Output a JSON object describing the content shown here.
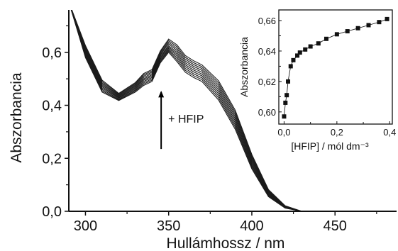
{
  "chart_data": [
    {
      "type": "line",
      "xlabel": "Hullámhossz / nm",
      "ylabel": "Abszorbancia",
      "xlim": [
        290,
        487
      ],
      "ylim": [
        0,
        0.76
      ],
      "xticks": [
        300,
        350,
        400,
        450
      ],
      "xtick_labels": [
        "300",
        "350",
        "400",
        "450"
      ],
      "yticks": [
        0,
        0.2,
        0.4,
        0.6
      ],
      "ytick_labels": [
        "0,0",
        "0,2",
        "0,4",
        "0,6"
      ],
      "annotation": "+ HFIP",
      "grid": false,
      "series": [
        {
          "x": [
            290,
            300,
            310,
            320,
            330,
            335,
            340,
            345,
            350,
            355,
            360,
            365,
            370,
            380,
            390,
            400,
            410,
            420,
            430,
            487
          ],
          "y": [
            0.79,
            0.58,
            0.45,
            0.418,
            0.45,
            0.475,
            0.49,
            0.56,
            0.6,
            0.565,
            0.525,
            0.505,
            0.49,
            0.42,
            0.31,
            0.16,
            0.055,
            0.012,
            0.0,
            0.0
          ]
        },
        {
          "x": [
            290,
            300,
            310,
            320,
            330,
            335,
            340,
            345,
            350,
            355,
            360,
            365,
            370,
            380,
            390,
            400,
            410,
            420,
            430,
            487
          ],
          "y": [
            0.79,
            0.585,
            0.455,
            0.421,
            0.454,
            0.48,
            0.495,
            0.565,
            0.605,
            0.572,
            0.532,
            0.512,
            0.497,
            0.428,
            0.318,
            0.166,
            0.058,
            0.013,
            0.0,
            0.0
          ]
        },
        {
          "x": [
            290,
            300,
            310,
            320,
            330,
            335,
            340,
            345,
            350,
            355,
            360,
            365,
            370,
            380,
            390,
            400,
            410,
            420,
            430,
            487
          ],
          "y": [
            0.79,
            0.59,
            0.46,
            0.424,
            0.458,
            0.485,
            0.5,
            0.57,
            0.61,
            0.579,
            0.539,
            0.519,
            0.504,
            0.436,
            0.326,
            0.172,
            0.061,
            0.014,
            0.0,
            0.0
          ]
        },
        {
          "x": [
            290,
            300,
            310,
            320,
            330,
            335,
            340,
            345,
            350,
            355,
            360,
            365,
            370,
            380,
            390,
            400,
            410,
            420,
            430,
            487
          ],
          "y": [
            0.79,
            0.595,
            0.465,
            0.427,
            0.462,
            0.49,
            0.505,
            0.575,
            0.615,
            0.586,
            0.546,
            0.526,
            0.511,
            0.444,
            0.334,
            0.178,
            0.064,
            0.015,
            0.0,
            0.0
          ]
        },
        {
          "x": [
            290,
            300,
            310,
            320,
            330,
            335,
            340,
            345,
            350,
            355,
            360,
            365,
            370,
            380,
            390,
            400,
            410,
            420,
            430,
            487
          ],
          "y": [
            0.79,
            0.6,
            0.47,
            0.43,
            0.466,
            0.495,
            0.51,
            0.58,
            0.62,
            0.593,
            0.553,
            0.533,
            0.518,
            0.452,
            0.342,
            0.184,
            0.067,
            0.016,
            0.0,
            0.0
          ]
        },
        {
          "x": [
            290,
            300,
            310,
            320,
            330,
            335,
            340,
            345,
            350,
            355,
            360,
            365,
            370,
            380,
            390,
            400,
            410,
            420,
            430,
            487
          ],
          "y": [
            0.79,
            0.605,
            0.475,
            0.433,
            0.47,
            0.5,
            0.515,
            0.585,
            0.625,
            0.6,
            0.56,
            0.54,
            0.525,
            0.46,
            0.35,
            0.19,
            0.07,
            0.017,
            0.0,
            0.0
          ]
        },
        {
          "x": [
            290,
            300,
            310,
            320,
            330,
            335,
            340,
            345,
            350,
            355,
            360,
            365,
            370,
            380,
            390,
            400,
            410,
            420,
            430,
            487
          ],
          "y": [
            0.79,
            0.61,
            0.48,
            0.436,
            0.474,
            0.505,
            0.52,
            0.59,
            0.632,
            0.607,
            0.567,
            0.547,
            0.532,
            0.468,
            0.358,
            0.196,
            0.073,
            0.018,
            0.0,
            0.0
          ]
        },
        {
          "x": [
            290,
            300,
            310,
            320,
            330,
            335,
            340,
            345,
            350,
            355,
            360,
            365,
            370,
            380,
            390,
            400,
            410,
            420,
            430,
            487
          ],
          "y": [
            0.79,
            0.615,
            0.485,
            0.439,
            0.478,
            0.51,
            0.525,
            0.595,
            0.638,
            0.614,
            0.574,
            0.554,
            0.539,
            0.476,
            0.366,
            0.202,
            0.076,
            0.019,
            0.0,
            0.0
          ]
        },
        {
          "x": [
            290,
            300,
            310,
            320,
            330,
            335,
            340,
            345,
            350,
            355,
            360,
            365,
            370,
            380,
            390,
            400,
            410,
            420,
            430,
            487
          ],
          "y": [
            0.79,
            0.62,
            0.49,
            0.442,
            0.482,
            0.515,
            0.53,
            0.6,
            0.644,
            0.621,
            0.581,
            0.561,
            0.546,
            0.484,
            0.374,
            0.208,
            0.079,
            0.02,
            0.0,
            0.0
          ]
        },
        {
          "x": [
            290,
            300,
            310,
            320,
            330,
            335,
            340,
            345,
            350,
            355,
            360,
            365,
            370,
            380,
            390,
            400,
            410,
            420,
            430,
            487
          ],
          "y": [
            0.79,
            0.625,
            0.495,
            0.445,
            0.486,
            0.52,
            0.535,
            0.605,
            0.65,
            0.628,
            0.588,
            0.568,
            0.553,
            0.492,
            0.382,
            0.214,
            0.082,
            0.021,
            0.0,
            0.0
          ]
        }
      ]
    },
    {
      "type": "scatter",
      "xlabel": "[HFIP]  / mól dm⁻³",
      "ylabel": "Abszorbancia",
      "xlim": [
        -0.02,
        0.41
      ],
      "ylim": [
        0.592,
        0.667
      ],
      "xticks": [
        0,
        0.2,
        0.4
      ],
      "xtick_labels": [
        "0,0",
        "0,2",
        "0,4"
      ],
      "yticks": [
        0.6,
        0.62,
        0.64,
        0.66
      ],
      "ytick_labels": [
        "0,60",
        "0,62",
        "0,64",
        "0,66"
      ],
      "grid": false,
      "x": [
        0.0,
        0.005,
        0.01,
        0.015,
        0.025,
        0.035,
        0.05,
        0.06,
        0.08,
        0.1,
        0.13,
        0.16,
        0.2,
        0.24,
        0.28,
        0.32,
        0.36,
        0.39
      ],
      "y": [
        0.597,
        0.606,
        0.611,
        0.62,
        0.63,
        0.634,
        0.637,
        0.639,
        0.641,
        0.643,
        0.645,
        0.648,
        0.651,
        0.653,
        0.655,
        0.657,
        0.659,
        0.661
      ]
    }
  ]
}
